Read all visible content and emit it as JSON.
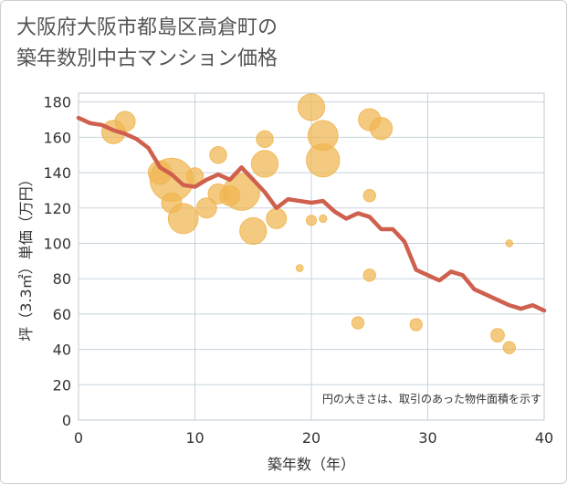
{
  "chart_data": {
    "type": "scatter",
    "title": "大阪府大阪市都島区高倉町の\n築年数別中古マンション価格",
    "xlabel": "築年数（年）",
    "ylabel": "坪（3.3㎡）単価（万円）",
    "note": "円の大きさは、取引のあった物件面積を示す",
    "xlim": [
      0,
      40
    ],
    "ylim": [
      0,
      185
    ],
    "xticks": [
      0,
      10,
      20,
      30,
      40
    ],
    "yticks": [
      0,
      20,
      40,
      60,
      80,
      100,
      120,
      140,
      160,
      180
    ],
    "grid": true,
    "colors": {
      "bubble": "#f0b550",
      "line": "#d0604e",
      "grid": "#c8d3dc",
      "plot_border": "#bfc9d3"
    },
    "series": [
      {
        "type": "bubble",
        "points": [
          {
            "x": 3,
            "y": 163,
            "size": 3
          },
          {
            "x": 4,
            "y": 169,
            "size": 2.5
          },
          {
            "x": 7,
            "y": 140,
            "size": 3
          },
          {
            "x": 8,
            "y": 136,
            "size": 6
          },
          {
            "x": 8,
            "y": 123,
            "size": 2.5
          },
          {
            "x": 9,
            "y": 114,
            "size": 4
          },
          {
            "x": 10,
            "y": 138,
            "size": 2
          },
          {
            "x": 11,
            "y": 120,
            "size": 2.5
          },
          {
            "x": 12,
            "y": 150,
            "size": 2
          },
          {
            "x": 12,
            "y": 128,
            "size": 2.5
          },
          {
            "x": 13,
            "y": 127,
            "size": 2.5
          },
          {
            "x": 14,
            "y": 129,
            "size": 5
          },
          {
            "x": 15,
            "y": 107,
            "size": 3.5
          },
          {
            "x": 16,
            "y": 159,
            "size": 2
          },
          {
            "x": 16,
            "y": 145,
            "size": 3.5
          },
          {
            "x": 17,
            "y": 114,
            "size": 2.5
          },
          {
            "x": 19,
            "y": 86,
            "size": 0.5
          },
          {
            "x": 20,
            "y": 177,
            "size": 3.5
          },
          {
            "x": 20,
            "y": 113,
            "size": 1
          },
          {
            "x": 21,
            "y": 161,
            "size": 4
          },
          {
            "x": 21,
            "y": 147,
            "size": 4.5
          },
          {
            "x": 21,
            "y": 114,
            "size": 0.6
          },
          {
            "x": 24,
            "y": 55,
            "size": 1.3
          },
          {
            "x": 25,
            "y": 170,
            "size": 2.8
          },
          {
            "x": 25,
            "y": 127,
            "size": 1.3
          },
          {
            "x": 25,
            "y": 82,
            "size": 1.3
          },
          {
            "x": 26,
            "y": 165,
            "size": 2.8
          },
          {
            "x": 29,
            "y": 54,
            "size": 1.3
          },
          {
            "x": 36,
            "y": 48,
            "size": 1.5
          },
          {
            "x": 37,
            "y": 100,
            "size": 0.5
          },
          {
            "x": 37,
            "y": 41,
            "size": 1.3
          }
        ]
      },
      {
        "type": "line",
        "x": [
          0,
          1,
          2,
          3,
          4,
          5,
          6,
          7,
          8,
          9,
          10,
          11,
          12,
          13,
          14,
          15,
          16,
          17,
          18,
          19,
          20,
          21,
          22,
          23,
          24,
          25,
          26,
          27,
          28,
          29,
          30,
          31,
          32,
          33,
          34,
          35,
          36,
          37,
          38,
          39,
          40
        ],
        "y": [
          171,
          168,
          167,
          164,
          162,
          159,
          154,
          143,
          139,
          133,
          132,
          136,
          139,
          136,
          143,
          136,
          129,
          120,
          125,
          124,
          123,
          124,
          118,
          114,
          117,
          115,
          108,
          108,
          101,
          85,
          82,
          79,
          84,
          82,
          74,
          71,
          68,
          65,
          63,
          65,
          62
        ]
      }
    ]
  }
}
